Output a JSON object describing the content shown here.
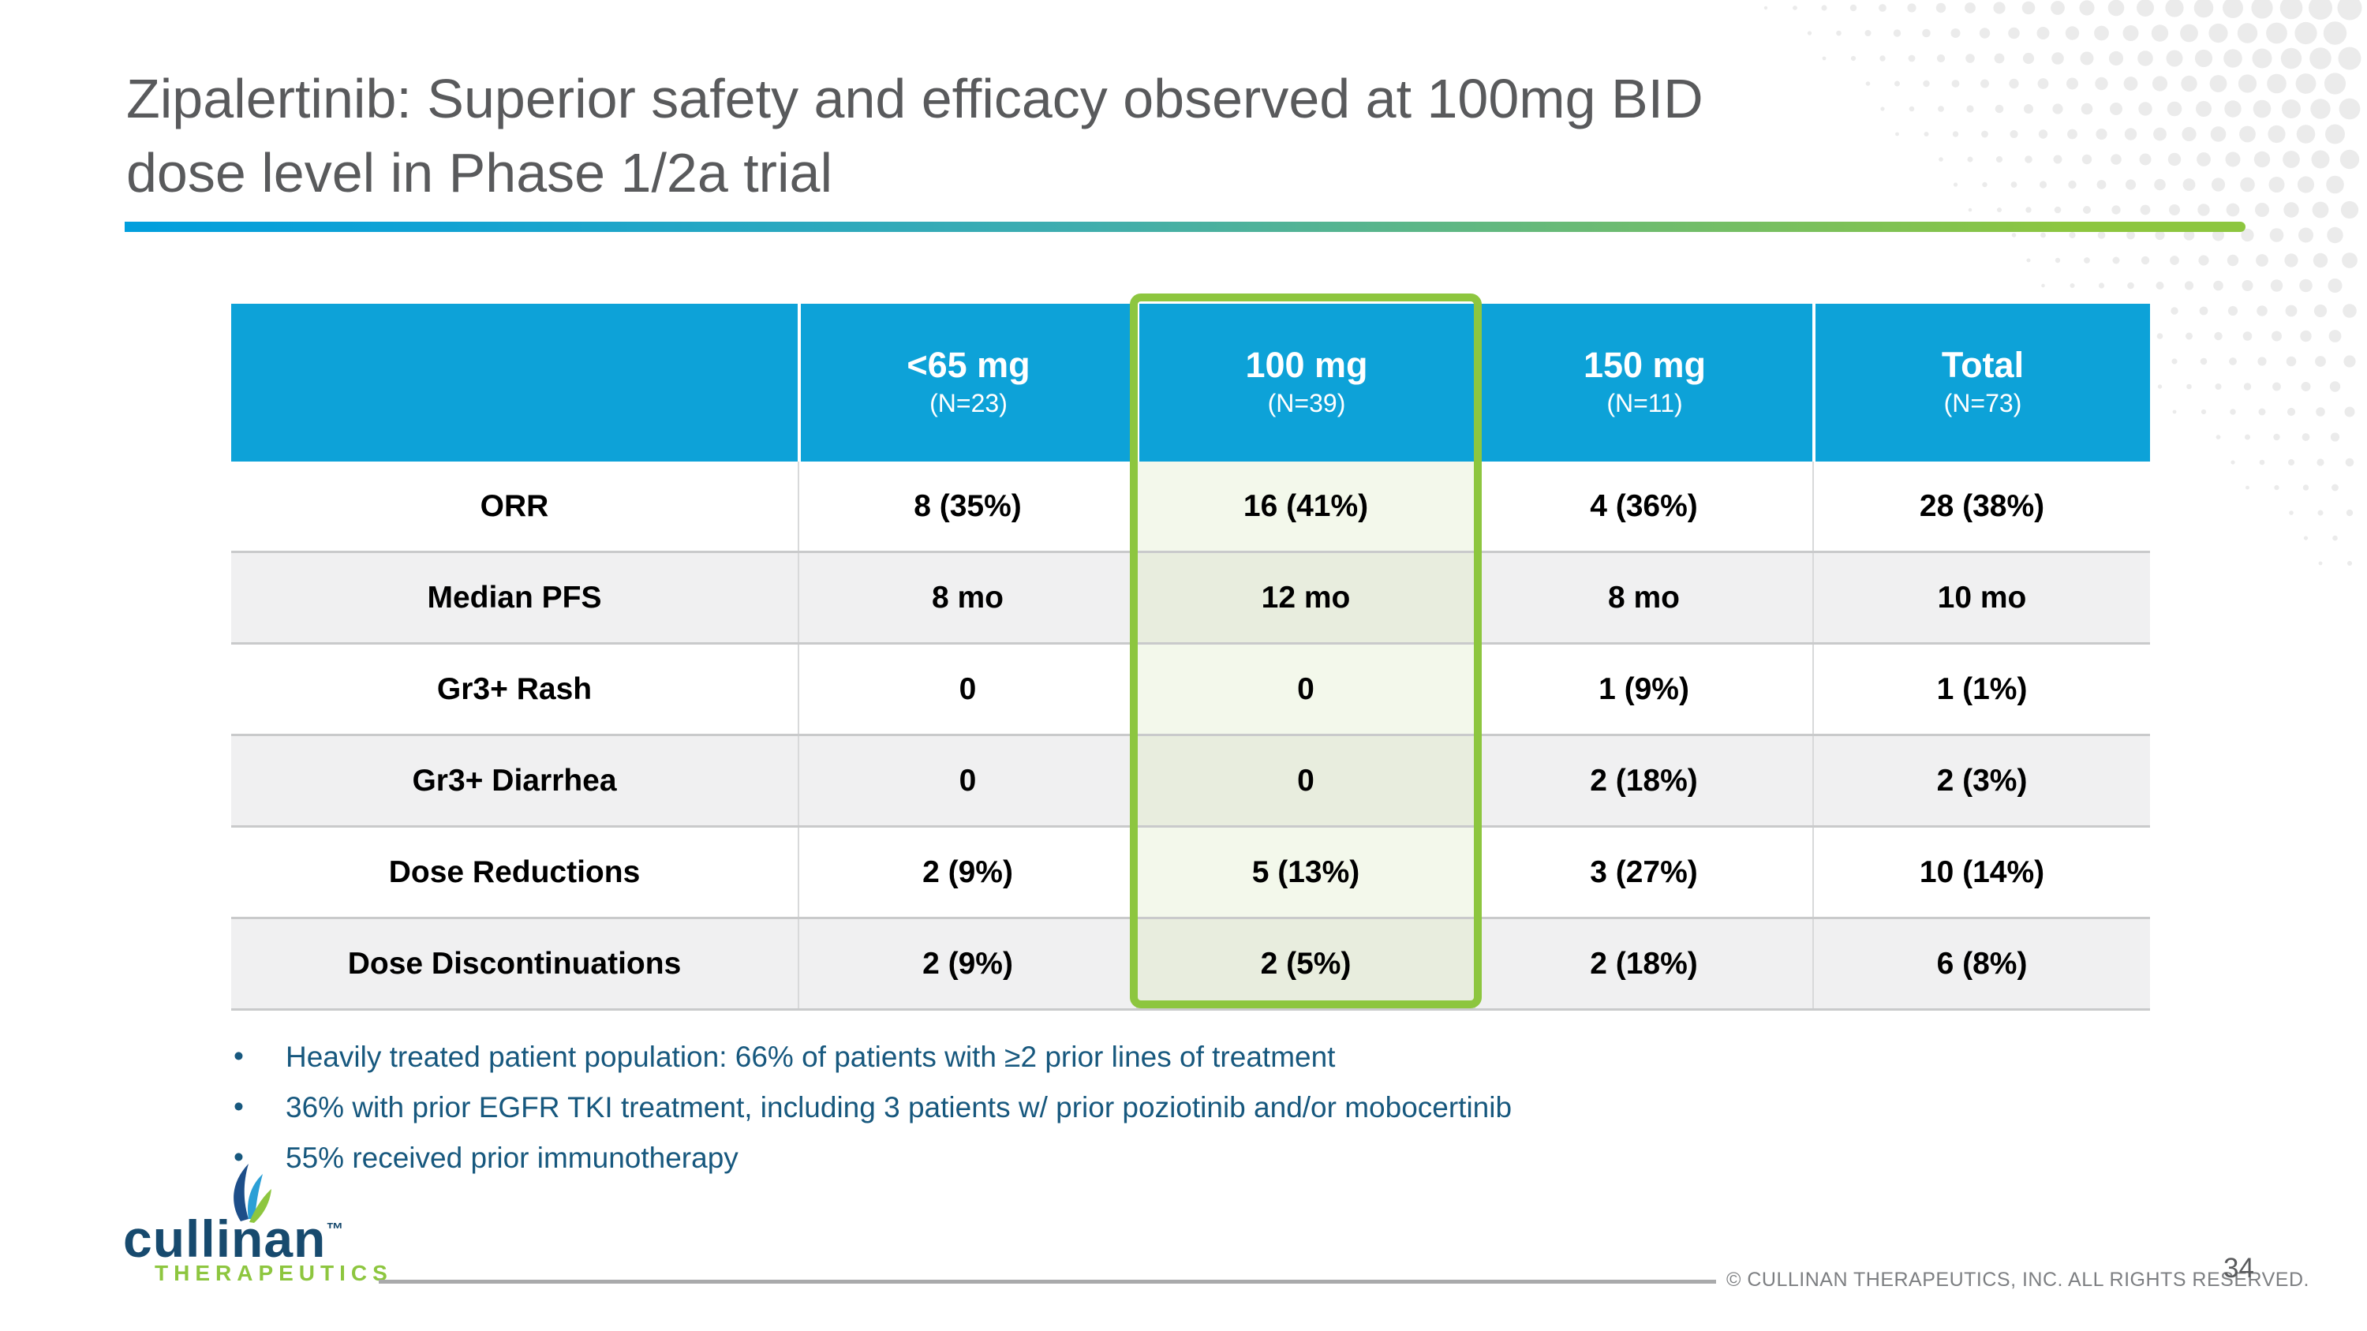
{
  "slide": {
    "title_lines": [
      "Zipalertinib: Superior safety and efficacy observed at 100mg BID",
      "dose level in Phase 1/2a trial"
    ],
    "page_number": "34",
    "copyright": "© CULLINAN THERAPEUTICS, INC. ALL RIGHTS RESERVED."
  },
  "table": {
    "row_header_blank": "",
    "columns": [
      {
        "label": "<65 mg",
        "n": "(N=23)",
        "highlighted": false
      },
      {
        "label": "100 mg",
        "n": "(N=39)",
        "highlighted": true
      },
      {
        "label": "150 mg",
        "n": "(N=11)",
        "highlighted": false
      },
      {
        "label": "Total",
        "n": "(N=73)",
        "highlighted": false
      }
    ],
    "rows": [
      {
        "label": "ORR",
        "values": [
          "8 (35%)",
          "16 (41%)",
          "4 (36%)",
          "28 (38%)"
        ]
      },
      {
        "label": "Median PFS",
        "values": [
          "8 mo",
          "12 mo",
          "8 mo",
          "10 mo"
        ]
      },
      {
        "label": "Gr3+ Rash",
        "values": [
          "0",
          "0",
          "1 (9%)",
          "1 (1%)"
        ]
      },
      {
        "label": "Gr3+ Diarrhea",
        "values": [
          "0",
          "0",
          "2 (18%)",
          "2 (3%)"
        ]
      },
      {
        "label": "Dose Reductions",
        "values": [
          "2 (9%)",
          "5 (13%)",
          "3 (27%)",
          "10 (14%)"
        ]
      },
      {
        "label": "Dose Discontinuations",
        "values": [
          "2 (9%)",
          "2 (5%)",
          "2 (18%)",
          "6 (8%)"
        ]
      }
    ]
  },
  "bullets": [
    "Heavily treated patient population: 66% of patients with ≥2 prior lines of treatment",
    "36% with prior EGFR TKI treatment, including 3 patients w/ prior poziotinib and/or mobocertinib",
    "55% received prior immunotherapy"
  ],
  "logo": {
    "wordmark": "cullinan",
    "tm": "™",
    "subtitle": "THERAPEUTICS"
  },
  "colors": {
    "header_blue": "#0da2d8",
    "highlight_green": "#8dc63f",
    "row_gray": "#f0f0f1",
    "tint_on_white": "#f3f8eb",
    "tint_on_gray": "#e8edde",
    "bullet_blue": "#17587e",
    "title_gray": "#595a5c",
    "logo_navy": "#174a6e",
    "logo_leaf_navy": "#1d4e89",
    "logo_leaf_cyan": "#2b9fd6",
    "gradient_start": "#019fdd",
    "gradient_end": "#8dc63f",
    "footer_gray": "#7d7f82"
  }
}
